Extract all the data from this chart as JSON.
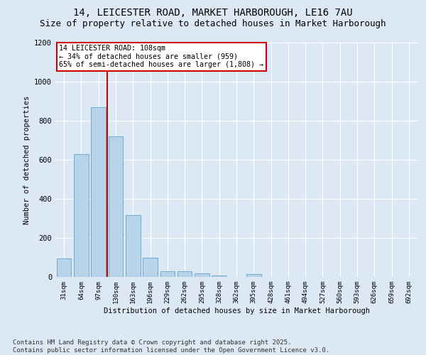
{
  "title1": "14, LEICESTER ROAD, MARKET HARBOROUGH, LE16 7AU",
  "title2": "Size of property relative to detached houses in Market Harborough",
  "xlabel": "Distribution of detached houses by size in Market Harborough",
  "ylabel": "Number of detached properties",
  "categories": [
    "31sqm",
    "64sqm",
    "97sqm",
    "130sqm",
    "163sqm",
    "196sqm",
    "229sqm",
    "262sqm",
    "295sqm",
    "328sqm",
    "362sqm",
    "395sqm",
    "428sqm",
    "461sqm",
    "494sqm",
    "527sqm",
    "560sqm",
    "593sqm",
    "626sqm",
    "659sqm",
    "692sqm"
  ],
  "values": [
    95,
    630,
    870,
    720,
    315,
    100,
    30,
    28,
    18,
    7,
    0,
    15,
    0,
    0,
    0,
    0,
    0,
    0,
    0,
    0,
    0
  ],
  "bar_color": "#b8d4ea",
  "bar_edge_color": "#7aafd4",
  "vline_color": "#cc0000",
  "annotation_text": "14 LEICESTER ROAD: 108sqm\n← 34% of detached houses are smaller (959)\n65% of semi-detached houses are larger (1,808) →",
  "annotation_box_color": "#ffffff",
  "annotation_box_edge": "#cc0000",
  "ylim": [
    0,
    1200
  ],
  "yticks": [
    0,
    200,
    400,
    600,
    800,
    1000,
    1200
  ],
  "background_color": "#dce9f5",
  "plot_bg_color": "#dce9f5",
  "footer": "Contains HM Land Registry data © Crown copyright and database right 2025.\nContains public sector information licensed under the Open Government Licence v3.0.",
  "footer_fontsize": 6.5,
  "title_fontsize": 10,
  "subtitle_fontsize": 9
}
